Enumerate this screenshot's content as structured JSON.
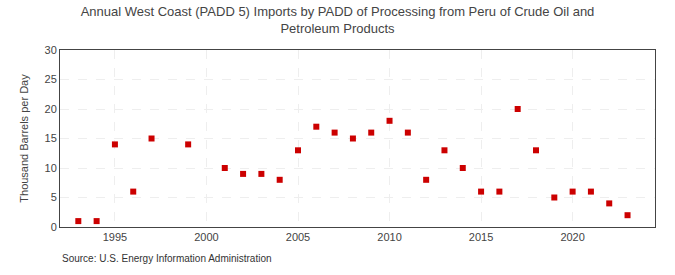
{
  "chart_data": {
    "type": "scatter",
    "title": "Annual West Coast (PADD 5) Imports by PADD of Processing from Peru of Crude Oil and\nPetroleum Products",
    "ylabel": "Thousand Barrels per Day",
    "annotations": [
      "Source: U.S. Energy Information Administration"
    ],
    "x": [
      1993,
      1994,
      1995,
      1996,
      1997,
      1999,
      2001,
      2002,
      2003,
      2004,
      2005,
      2006,
      2007,
      2008,
      2009,
      2010,
      2011,
      2012,
      2013,
      2014,
      2015,
      2016,
      2017,
      2018,
      2019,
      2020,
      2021,
      2022,
      2023
    ],
    "values": [
      1,
      1,
      14,
      6,
      15,
      14,
      10,
      9,
      9,
      8,
      13,
      17,
      16,
      15,
      16,
      18,
      16,
      8,
      13,
      10,
      6,
      6,
      20,
      13,
      5,
      6,
      6,
      4,
      2
    ],
    "color": "#cc0000",
    "marker": "square",
    "xlim": [
      1992,
      2024.5
    ],
    "ylim": [
      0,
      30
    ],
    "xticks": [
      1995,
      2000,
      2005,
      2010,
      2015,
      2020
    ],
    "yticks": [
      0,
      5,
      10,
      15,
      20,
      25,
      30
    ],
    "grid": true
  }
}
